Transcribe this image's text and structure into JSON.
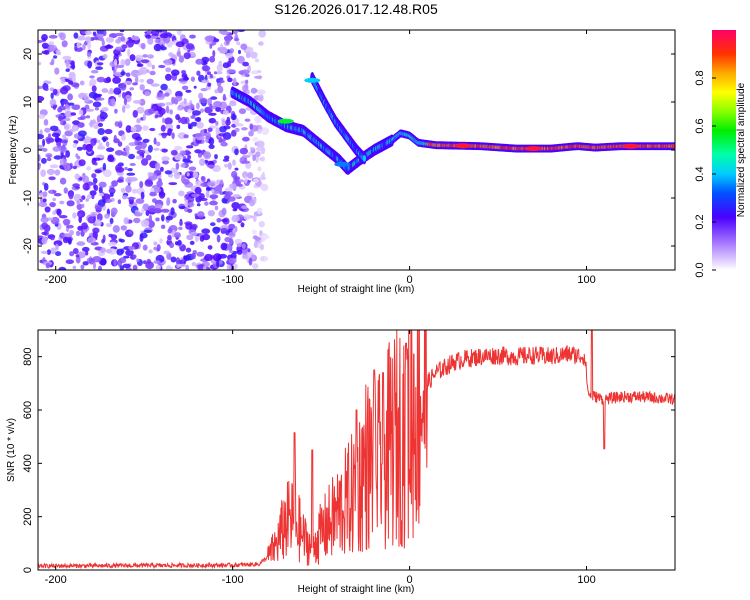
{
  "page_title": "S126.2026.017.12.48.R05",
  "chart_data": [
    {
      "type": "heatmap",
      "title": "S126.2026.017.12.48.R05",
      "xlabel": "Height of straight line (km)",
      "ylabel": "Frequency (Hz)",
      "xlim": [
        -210,
        150
      ],
      "ylim": [
        -25,
        25
      ],
      "xticks": [
        -200,
        -100,
        0,
        100
      ],
      "yticks": [
        -20,
        -10,
        0,
        10,
        20
      ],
      "colorbar": {
        "label": "Normalized spectral amplitude",
        "range": [
          0,
          1
        ],
        "ticks": [
          0.0,
          0.2,
          0.4,
          0.6,
          0.8
        ],
        "tick_labels": [
          "0.0",
          "0.2",
          "0.4",
          "0.6",
          "0.8"
        ]
      },
      "background_noise_region": {
        "x_from": -210,
        "x_to": -95,
        "amplitude": 0.15
      },
      "ridges": [
        {
          "name": "main",
          "points": [
            [
              -100,
              12
            ],
            [
              -90,
              10
            ],
            [
              -80,
              7
            ],
            [
              -70,
              5
            ],
            [
              -60,
              4
            ],
            [
              -50,
              1
            ],
            [
              -40,
              -2
            ],
            [
              -35,
              -4
            ],
            [
              -28,
              -2
            ],
            [
              -20,
              0
            ],
            [
              -10,
              2
            ],
            [
              -5,
              3.5
            ],
            [
              0,
              3
            ],
            [
              5,
              1.5
            ],
            [
              15,
              1
            ],
            [
              40,
              0.8
            ],
            [
              60,
              0.3
            ],
            [
              80,
              0.3
            ],
            [
              95,
              0.8
            ],
            [
              105,
              0.5
            ],
            [
              120,
              0.8
            ],
            [
              150,
              0.8
            ]
          ]
        },
        {
          "name": "secondary",
          "points": [
            [
              -55,
              15
            ],
            [
              -48,
              10
            ],
            [
              -42,
              6
            ],
            [
              -36,
              3
            ],
            [
              -30,
              0
            ],
            [
              -25,
              -2
            ]
          ]
        }
      ],
      "peak_points": [
        {
          "x": -70,
          "y": 6,
          "amplitude": 0.55
        },
        {
          "x": -55,
          "y": 14.5,
          "amplitude": 0.4
        },
        {
          "x": -38,
          "y": -3,
          "amplitude": 0.35
        },
        {
          "x": 30,
          "y": 0.9,
          "amplitude": 0.95
        },
        {
          "x": 70,
          "y": 0.3,
          "amplitude": 0.95
        },
        {
          "x": 125,
          "y": 0.8,
          "amplitude": 0.95
        }
      ]
    },
    {
      "type": "line",
      "xlabel": "Height of straight line (km)",
      "ylabel": "SNR (10 * v/v)",
      "xlim": [
        -210,
        150
      ],
      "ylim": [
        0,
        900
      ],
      "xticks": [
        -200,
        -100,
        0,
        100
      ],
      "yticks": [
        0,
        200,
        400,
        600,
        800
      ],
      "series": [
        {
          "name": "SNR",
          "color": "#ee3333",
          "x": [
            -210,
            -100,
            -85,
            -80,
            -75,
            -70,
            -65,
            -60,
            -55,
            -50,
            -45,
            -40,
            -35,
            -30,
            -25,
            -20,
            -15,
            -10,
            -5,
            0,
            5,
            10,
            15,
            20,
            25,
            30,
            40,
            50,
            60,
            70,
            80,
            90,
            99,
            101,
            105,
            110,
            120,
            130,
            140,
            150
          ],
          "y": [
            15,
            18,
            22,
            50,
            100,
            180,
            190,
            120,
            80,
            140,
            180,
            220,
            260,
            300,
            400,
            380,
            420,
            480,
            520,
            560,
            650,
            700,
            740,
            760,
            780,
            790,
            800,
            805,
            800,
            805,
            800,
            810,
            800,
            660,
            650,
            640,
            650,
            650,
            645,
            640
          ],
          "spikes": [
            {
              "x": -65,
              "y": 515
            },
            {
              "x": -55,
              "y": 450
            },
            {
              "x": -30,
              "y": 600
            },
            {
              "x": -20,
              "y": 750
            },
            {
              "x": -15,
              "y": 740
            },
            {
              "x": -2,
              "y": 850
            },
            {
              "x": 103,
              "y": 910
            },
            {
              "x": 110,
              "y": 455
            }
          ]
        }
      ]
    }
  ],
  "colors": {
    "line": "#ee3333",
    "noise_dots": "#6633ee",
    "frame": "#000000"
  }
}
